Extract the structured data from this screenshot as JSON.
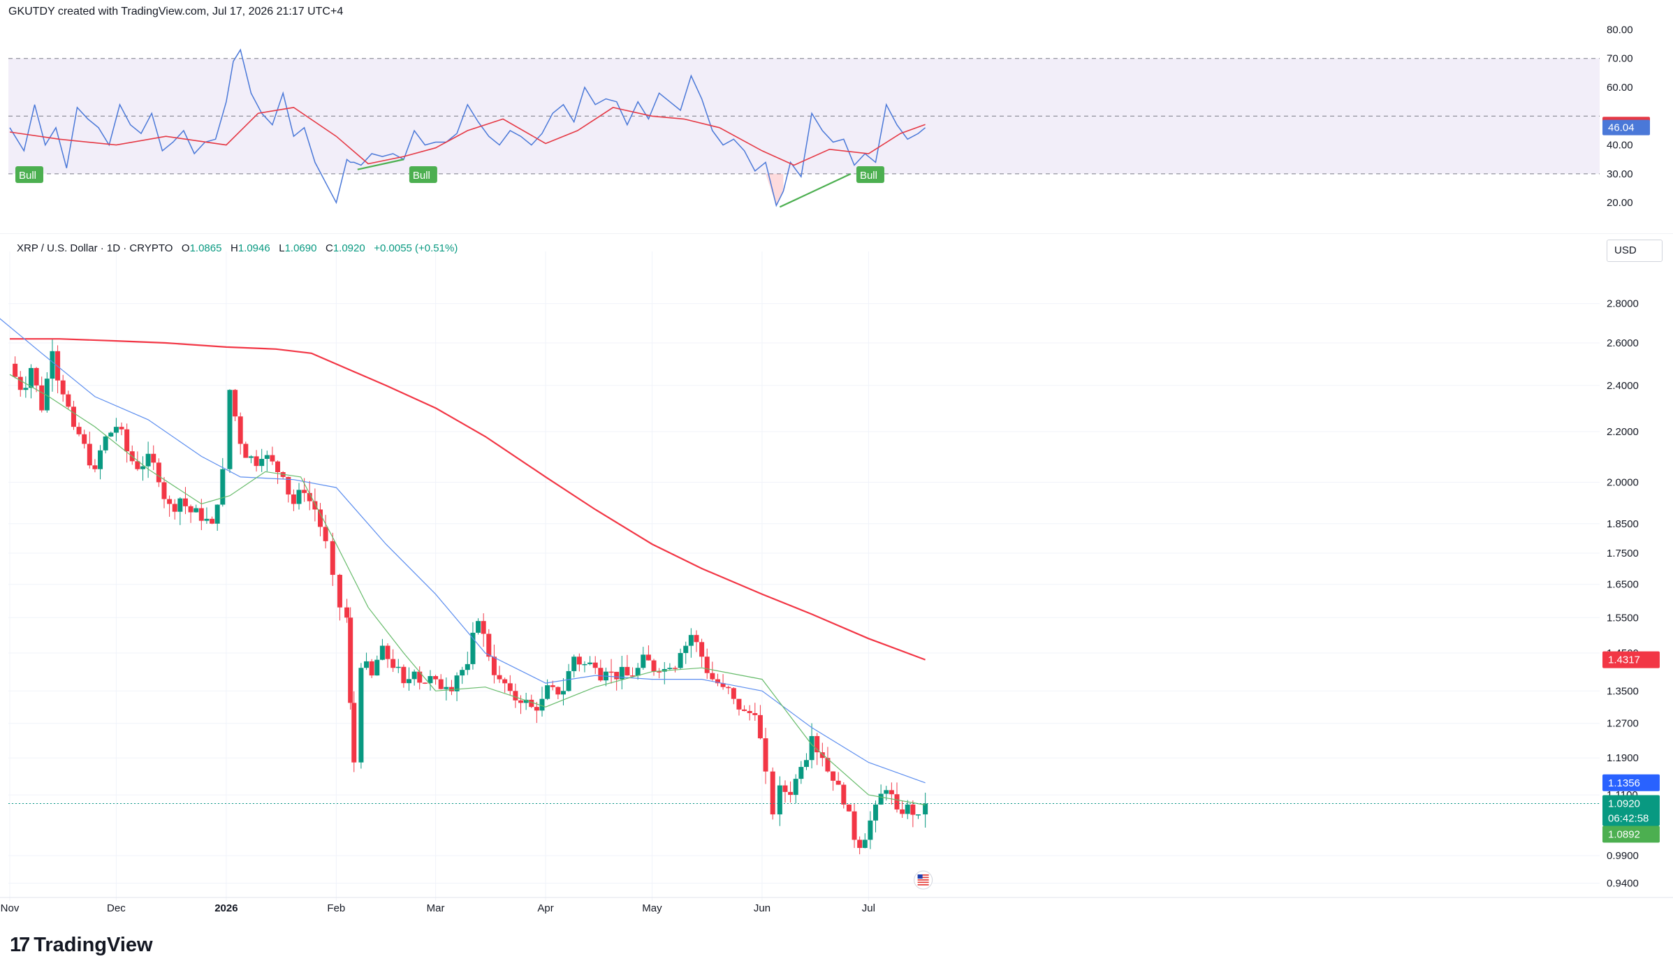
{
  "header": {
    "text": "GKUTDY created with TradingView.com, Jul 17, 2026 21:17 UTC+4"
  },
  "symbol": {
    "name": "XRP / U.S. Dollar · 1D · CRYPTO",
    "o_label": "O",
    "o": "1.0865",
    "h_label": "H",
    "h": "1.0946",
    "l_label": "L",
    "l": "1.0690",
    "c_label": "C",
    "c": "1.0920",
    "change": "+0.0055 (+0.51%)"
  },
  "currency": "USD",
  "footer": {
    "brand": "TradingView",
    "brand_icon": "tradingview-logo-icon"
  },
  "colors": {
    "up": "#089981",
    "down": "#f23645",
    "ma200": "#f23645",
    "ma50": "#5b8def",
    "ma20": "#66bb6a",
    "rsi": "#4a78d8",
    "rsi_ma": "#e53945",
    "rsi_band": "#7e57c2",
    "bull": "#4caf50"
  },
  "chart_data": [
    {
      "type": "line",
      "title": "RSI",
      "y_ticks": [
        "80.00",
        "70.00",
        "60.00",
        "40.00",
        "30.00",
        "20.00"
      ],
      "ylim": [
        14,
        83
      ],
      "band": [
        30,
        70
      ],
      "mid_line": 50,
      "last_values": {
        "rsi_ma": "47.12",
        "rsi": "46.04"
      },
      "annotations": [
        {
          "label": "Bull",
          "date": "2025-11-01"
        },
        {
          "label": "Bull",
          "date": "2026-02-20"
        },
        {
          "label": "Bull",
          "date": "2026-06-26"
        }
      ],
      "divergences": [
        {
          "from_date": "2026-02-07",
          "from_value": 31.5,
          "to_date": "2026-02-20",
          "to_value": 35.0
        },
        {
          "from_date": "2026-06-06",
          "from_value": 18.5,
          "to_date": "2026-06-26",
          "to_value": 30.0
        }
      ],
      "series": [
        {
          "key": "rsi",
          "dates": [
            "2025-11-01",
            "2025-11-05",
            "2025-11-08",
            "2025-11-11",
            "2025-11-14",
            "2025-11-17",
            "2025-11-20",
            "2025-11-23",
            "2025-11-26",
            "2025-11-29",
            "2025-12-02",
            "2025-12-05",
            "2025-12-08",
            "2025-12-11",
            "2025-12-14",
            "2025-12-17",
            "2025-12-20",
            "2025-12-23",
            "2025-12-26",
            "2025-12-29",
            "2026-01-01",
            "2026-01-03",
            "2026-01-05",
            "2026-01-08",
            "2026-01-11",
            "2026-01-14",
            "2026-01-17",
            "2026-01-20",
            "2026-01-23",
            "2026-01-26",
            "2026-01-29",
            "2026-02-01",
            "2026-02-04",
            "2026-02-05",
            "2026-02-06",
            "2026-02-08",
            "2026-02-11",
            "2026-02-14",
            "2026-02-17",
            "2026-02-20",
            "2026-02-23",
            "2026-02-26",
            "2026-03-01",
            "2026-03-04",
            "2026-03-07",
            "2026-03-10",
            "2026-03-13",
            "2026-03-16",
            "2026-03-19",
            "2026-03-22",
            "2026-03-25",
            "2026-03-28",
            "2026-03-31",
            "2026-04-03",
            "2026-04-06",
            "2026-04-09",
            "2026-04-12",
            "2026-04-15",
            "2026-04-18",
            "2026-04-21",
            "2026-04-24",
            "2026-04-27",
            "2026-04-30",
            "2026-05-03",
            "2026-05-06",
            "2026-05-09",
            "2026-05-12",
            "2026-05-15",
            "2026-05-18",
            "2026-05-21",
            "2026-05-24",
            "2026-05-27",
            "2026-05-30",
            "2026-06-02",
            "2026-06-05",
            "2026-06-07",
            "2026-06-09",
            "2026-06-12",
            "2026-06-15",
            "2026-06-18",
            "2026-06-21",
            "2026-06-24",
            "2026-06-27",
            "2026-06-30",
            "2026-07-03",
            "2026-07-06",
            "2026-07-09",
            "2026-07-12",
            "2026-07-15",
            "2026-07-17"
          ],
          "values": [
            46,
            38,
            54,
            40,
            46,
            32,
            53,
            49,
            46,
            40,
            54,
            47,
            44,
            51,
            38,
            41,
            45,
            37,
            41,
            42,
            55,
            69,
            73,
            58,
            51,
            47,
            58,
            43,
            46,
            34,
            27,
            20,
            35,
            34,
            34,
            33,
            37,
            36,
            37,
            35,
            45,
            40,
            41,
            41,
            44,
            54,
            48,
            43,
            40,
            45,
            43,
            40,
            44,
            51,
            54,
            48,
            60,
            54,
            56,
            55,
            47,
            55,
            49,
            58,
            55,
            52,
            64,
            56,
            45,
            40,
            42,
            38,
            31,
            34,
            19,
            24,
            34,
            29,
            51,
            45,
            41,
            42,
            33,
            37,
            34,
            54,
            47,
            42,
            44,
            46
          ]
        },
        {
          "key": "rsi_ma",
          "dates": [
            "2025-11-01",
            "2025-11-15",
            "2025-12-01",
            "2025-12-15",
            "2026-01-01",
            "2026-01-10",
            "2026-01-20",
            "2026-02-01",
            "2026-02-10",
            "2026-02-20",
            "2026-03-01",
            "2026-03-10",
            "2026-03-20",
            "2026-04-01",
            "2026-04-10",
            "2026-04-20",
            "2026-05-01",
            "2026-05-10",
            "2026-05-20",
            "2026-06-01",
            "2026-06-10",
            "2026-06-20",
            "2026-07-01",
            "2026-07-10",
            "2026-07-17"
          ],
          "values": [
            44.5,
            42,
            40,
            43,
            40,
            51,
            53,
            43,
            33.5,
            36,
            39,
            45,
            49,
            40.5,
            45,
            53,
            50,
            49,
            46,
            38,
            33,
            38.5,
            37,
            44,
            47.12
          ]
        }
      ]
    },
    {
      "type": "candlestick",
      "title": "XRP / U.S. Dollar · 1D · CRYPTO",
      "scale": "log",
      "y_ticks": [
        "2.8000",
        "2.6000",
        "2.4000",
        "2.2000",
        "2.0000",
        "1.8500",
        "1.7500",
        "1.6500",
        "1.5500",
        "1.4500",
        "1.3500",
        "1.2700",
        "1.1900",
        "1.1100",
        "1.0920",
        "0.9900",
        "0.9400"
      ],
      "ylim": [
        0.915,
        2.95
      ],
      "x_ticks": [
        {
          "label": "Nov",
          "date": "2025-11-01"
        },
        {
          "label": "Dec",
          "date": "2025-12-01"
        },
        {
          "label": "2026",
          "date": "2026-01-01"
        },
        {
          "label": "Feb",
          "date": "2026-02-01"
        },
        {
          "label": "Mar",
          "date": "2026-03-01"
        },
        {
          "label": "Apr",
          "date": "2026-04-01"
        },
        {
          "label": "May",
          "date": "2026-05-01"
        },
        {
          "label": "Jun",
          "date": "2026-06-01"
        },
        {
          "label": "Jul",
          "date": "2026-07-01"
        }
      ],
      "last_price_line": 1.092,
      "price_labels": [
        {
          "key": "ma200",
          "value": "1.4317"
        },
        {
          "key": "ma50",
          "value": "1.1356"
        },
        {
          "key": "price",
          "value": "1.0920"
        },
        {
          "key": "countdown",
          "value": "06:42:58"
        },
        {
          "key": "ma20",
          "value": "1.0892"
        }
      ],
      "close_dates": [
        "2025-11-01",
        "2025-11-04",
        "2025-11-07",
        "2025-11-10",
        "2025-11-13",
        "2025-11-16",
        "2025-11-19",
        "2025-11-22",
        "2025-11-25",
        "2025-11-28",
        "2025-12-01",
        "2025-12-04",
        "2025-12-07",
        "2025-12-10",
        "2025-12-13",
        "2025-12-16",
        "2025-12-19",
        "2025-12-22",
        "2025-12-25",
        "2025-12-28",
        "2025-12-31",
        "2026-01-02",
        "2026-01-05",
        "2026-01-08",
        "2026-01-11",
        "2026-01-14",
        "2026-01-17",
        "2026-01-20",
        "2026-01-23",
        "2026-01-26",
        "2026-01-29",
        "2026-01-31",
        "2026-02-02",
        "2026-02-04",
        "2026-02-05",
        "2026-02-06",
        "2026-02-08",
        "2026-02-11",
        "2026-02-14",
        "2026-02-17",
        "2026-02-20",
        "2026-02-23",
        "2026-02-26",
        "2026-03-01",
        "2026-03-04",
        "2026-03-07",
        "2026-03-10",
        "2026-03-13",
        "2026-03-16",
        "2026-03-19",
        "2026-03-22",
        "2026-03-25",
        "2026-03-28",
        "2026-03-31",
        "2026-04-03",
        "2026-04-06",
        "2026-04-09",
        "2026-04-12",
        "2026-04-15",
        "2026-04-18",
        "2026-04-21",
        "2026-04-24",
        "2026-04-27",
        "2026-04-30",
        "2026-05-03",
        "2026-05-06",
        "2026-05-09",
        "2026-05-12",
        "2026-05-15",
        "2026-05-18",
        "2026-05-21",
        "2026-05-24",
        "2026-05-27",
        "2026-05-30",
        "2026-06-02",
        "2026-06-04",
        "2026-06-06",
        "2026-06-09",
        "2026-06-12",
        "2026-06-15",
        "2026-06-18",
        "2026-06-21",
        "2026-06-24",
        "2026-06-27",
        "2026-06-30",
        "2026-07-03",
        "2026-07-06",
        "2026-07-09",
        "2026-07-12",
        "2026-07-15",
        "2026-07-17"
      ],
      "closes": [
        2.5,
        2.38,
        2.48,
        2.29,
        2.56,
        2.36,
        2.22,
        2.15,
        2.05,
        2.18,
        2.22,
        2.12,
        2.05,
        2.11,
        2.0,
        1.92,
        1.94,
        1.89,
        1.86,
        1.85,
        2.05,
        2.38,
        2.15,
        2.1,
        2.09,
        2.08,
        2.02,
        1.92,
        1.96,
        1.9,
        1.79,
        1.68,
        1.58,
        1.55,
        1.32,
        1.18,
        1.41,
        1.39,
        1.47,
        1.41,
        1.37,
        1.4,
        1.37,
        1.38,
        1.36,
        1.39,
        1.42,
        1.54,
        1.44,
        1.38,
        1.35,
        1.32,
        1.31,
        1.33,
        1.36,
        1.35,
        1.44,
        1.42,
        1.41,
        1.4,
        1.38,
        1.39,
        1.41,
        1.43,
        1.4,
        1.41,
        1.45,
        1.5,
        1.44,
        1.38,
        1.36,
        1.33,
        1.3,
        1.29,
        1.16,
        1.07,
        1.13,
        1.11,
        1.17,
        1.24,
        1.19,
        1.14,
        1.09,
        1.02,
        1.02,
        1.09,
        1.12,
        1.08,
        1.09,
        1.07,
        1.092
      ],
      "series": [
        {
          "key": "ma200",
          "dates": [
            "2025-11-01",
            "2025-11-15",
            "2025-12-01",
            "2025-12-15",
            "2026-01-01",
            "2026-01-15",
            "2026-01-25",
            "2026-02-05",
            "2026-02-15",
            "2026-03-01",
            "2026-03-15",
            "2026-04-01",
            "2026-04-15",
            "2026-05-01",
            "2026-05-15",
            "2026-06-01",
            "2026-06-15",
            "2026-07-01",
            "2026-07-17"
          ],
          "values": [
            2.62,
            2.62,
            2.61,
            2.6,
            2.58,
            2.57,
            2.55,
            2.47,
            2.4,
            2.3,
            2.18,
            2.02,
            1.9,
            1.78,
            1.7,
            1.62,
            1.56,
            1.49,
            1.4317
          ]
        },
        {
          "key": "ma50",
          "dates": [
            "2025-10-28",
            "2025-11-10",
            "2025-11-25",
            "2025-12-10",
            "2025-12-25",
            "2026-01-05",
            "2026-01-20",
            "2026-02-01",
            "2026-02-15",
            "2026-03-01",
            "2026-03-15",
            "2026-04-01",
            "2026-04-15",
            "2026-05-01",
            "2026-05-15",
            "2026-06-01",
            "2026-06-15",
            "2026-07-01",
            "2026-07-17"
          ],
          "values": [
            2.74,
            2.55,
            2.35,
            2.25,
            2.1,
            2.02,
            2.01,
            1.98,
            1.78,
            1.62,
            1.45,
            1.37,
            1.39,
            1.38,
            1.38,
            1.35,
            1.26,
            1.18,
            1.1356
          ]
        },
        {
          "key": "ma20",
          "dates": [
            "2025-11-01",
            "2025-11-12",
            "2025-11-25",
            "2025-12-10",
            "2025-12-25",
            "2026-01-02",
            "2026-01-12",
            "2026-01-22",
            "2026-02-01",
            "2026-02-10",
            "2026-02-20",
            "2026-03-01",
            "2026-03-15",
            "2026-04-01",
            "2026-04-15",
            "2026-05-01",
            "2026-05-15",
            "2026-06-01",
            "2026-06-15",
            "2026-07-01",
            "2026-07-17"
          ],
          "values": [
            2.45,
            2.35,
            2.22,
            2.05,
            1.92,
            1.95,
            2.04,
            2.02,
            1.78,
            1.58,
            1.45,
            1.35,
            1.36,
            1.31,
            1.36,
            1.4,
            1.41,
            1.38,
            1.22,
            1.11,
            1.0892
          ]
        }
      ]
    }
  ]
}
